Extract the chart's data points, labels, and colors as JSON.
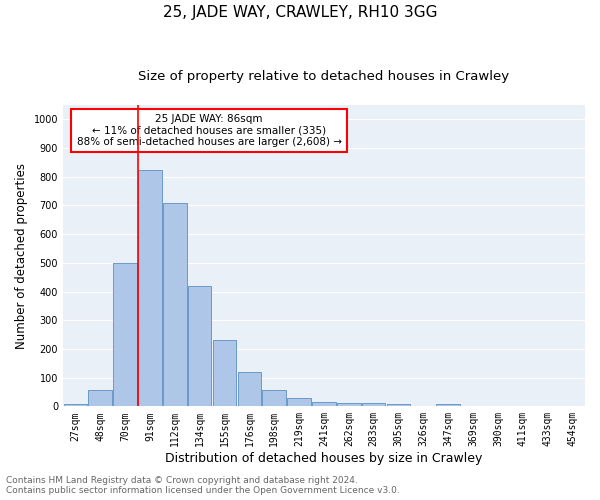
{
  "title": "25, JADE WAY, CRAWLEY, RH10 3GG",
  "subtitle": "Size of property relative to detached houses in Crawley",
  "xlabel": "Distribution of detached houses by size in Crawley",
  "ylabel": "Number of detached properties",
  "categories": [
    "27sqm",
    "48sqm",
    "70sqm",
    "91sqm",
    "112sqm",
    "134sqm",
    "155sqm",
    "176sqm",
    "198sqm",
    "219sqm",
    "241sqm",
    "262sqm",
    "283sqm",
    "305sqm",
    "326sqm",
    "347sqm",
    "369sqm",
    "390sqm",
    "411sqm",
    "433sqm",
    "454sqm"
  ],
  "values": [
    8,
    58,
    500,
    825,
    710,
    420,
    230,
    118,
    57,
    30,
    15,
    13,
    10,
    7,
    0,
    8,
    0,
    0,
    0,
    0,
    0
  ],
  "bar_color": "#aec6e8",
  "bar_edge_color": "#5a8fc3",
  "vline_color": "red",
  "annotation_text": "25 JADE WAY: 86sqm\n← 11% of detached houses are smaller (335)\n88% of semi-detached houses are larger (2,608) →",
  "annotation_box_color": "white",
  "annotation_box_edge_color": "red",
  "ylim": [
    0,
    1050
  ],
  "yticks": [
    0,
    100,
    200,
    300,
    400,
    500,
    600,
    700,
    800,
    900,
    1000
  ],
  "background_color": "#eaf0f8",
  "grid_color": "white",
  "footer_line1": "Contains HM Land Registry data © Crown copyright and database right 2024.",
  "footer_line2": "Contains public sector information licensed under the Open Government Licence v3.0.",
  "title_fontsize": 11,
  "subtitle_fontsize": 9.5,
  "xlabel_fontsize": 9,
  "ylabel_fontsize": 8.5,
  "tick_fontsize": 7,
  "annotation_fontsize": 7.5,
  "footer_fontsize": 6.5
}
